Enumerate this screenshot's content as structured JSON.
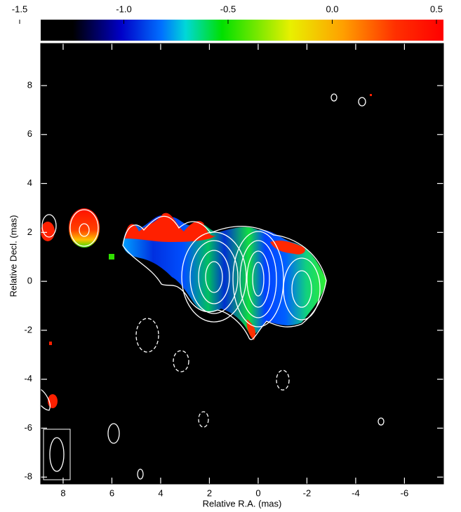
{
  "chart_data": {
    "type": "image",
    "xlabel": "Relative R.A. (mas)",
    "ylabel": "Relative Decl. (mas)",
    "xlim": [
      8.92,
      -7.6
    ],
    "ylim": [
      -8.28,
      9.72
    ],
    "xticks": [
      8,
      6,
      4,
      2,
      0,
      -2,
      -4,
      -6
    ],
    "yticks": [
      -8,
      -6,
      -4,
      -2,
      0,
      2,
      4,
      6,
      8
    ],
    "colorbar": {
      "lim": [
        -1.5,
        0.5
      ],
      "ticks": [
        -1.5,
        {
          "value": -1,
          "label": "-1.0"
        },
        -0.5,
        {
          "value": 0,
          "label": "0.0"
        },
        0.5
      ]
    }
  }
}
